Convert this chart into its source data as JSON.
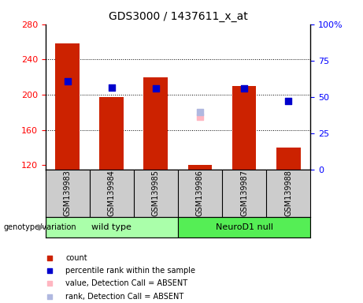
{
  "title": "GDS3000 / 1437611_x_at",
  "samples": [
    "GSM139983",
    "GSM139984",
    "GSM139985",
    "GSM139986",
    "GSM139987",
    "GSM139988"
  ],
  "counts": [
    258,
    197,
    220,
    120,
    210,
    140
  ],
  "percentile_ranks": [
    215,
    208,
    207,
    null,
    207,
    193
  ],
  "absent_value": [
    null,
    null,
    null,
    175,
    null,
    null
  ],
  "absent_rank": [
    null,
    null,
    null,
    175,
    null,
    null
  ],
  "ylim_left": [
    115,
    280
  ],
  "ylim_right": [
    0,
    100
  ],
  "yticks_left": [
    120,
    160,
    200,
    240,
    280
  ],
  "yticks_right": [
    0,
    25,
    50,
    75,
    100
  ],
  "bar_color": "#cc2200",
  "rank_color": "#0000cc",
  "absent_val_color": "#ffb6c1",
  "absent_rank_color": "#b0b8e0",
  "bar_bottom": 115,
  "bar_width": 0.55,
  "group_label": "genotype/variation",
  "wt_label": "wild type",
  "nd_label": "NeuroD1 null",
  "wt_color": "#aaffaa",
  "nd_color": "#55ee55",
  "sample_box_color": "#cccccc",
  "legend_items": [
    "count",
    "percentile rank within the sample",
    "value, Detection Call = ABSENT",
    "rank, Detection Call = ABSENT"
  ]
}
